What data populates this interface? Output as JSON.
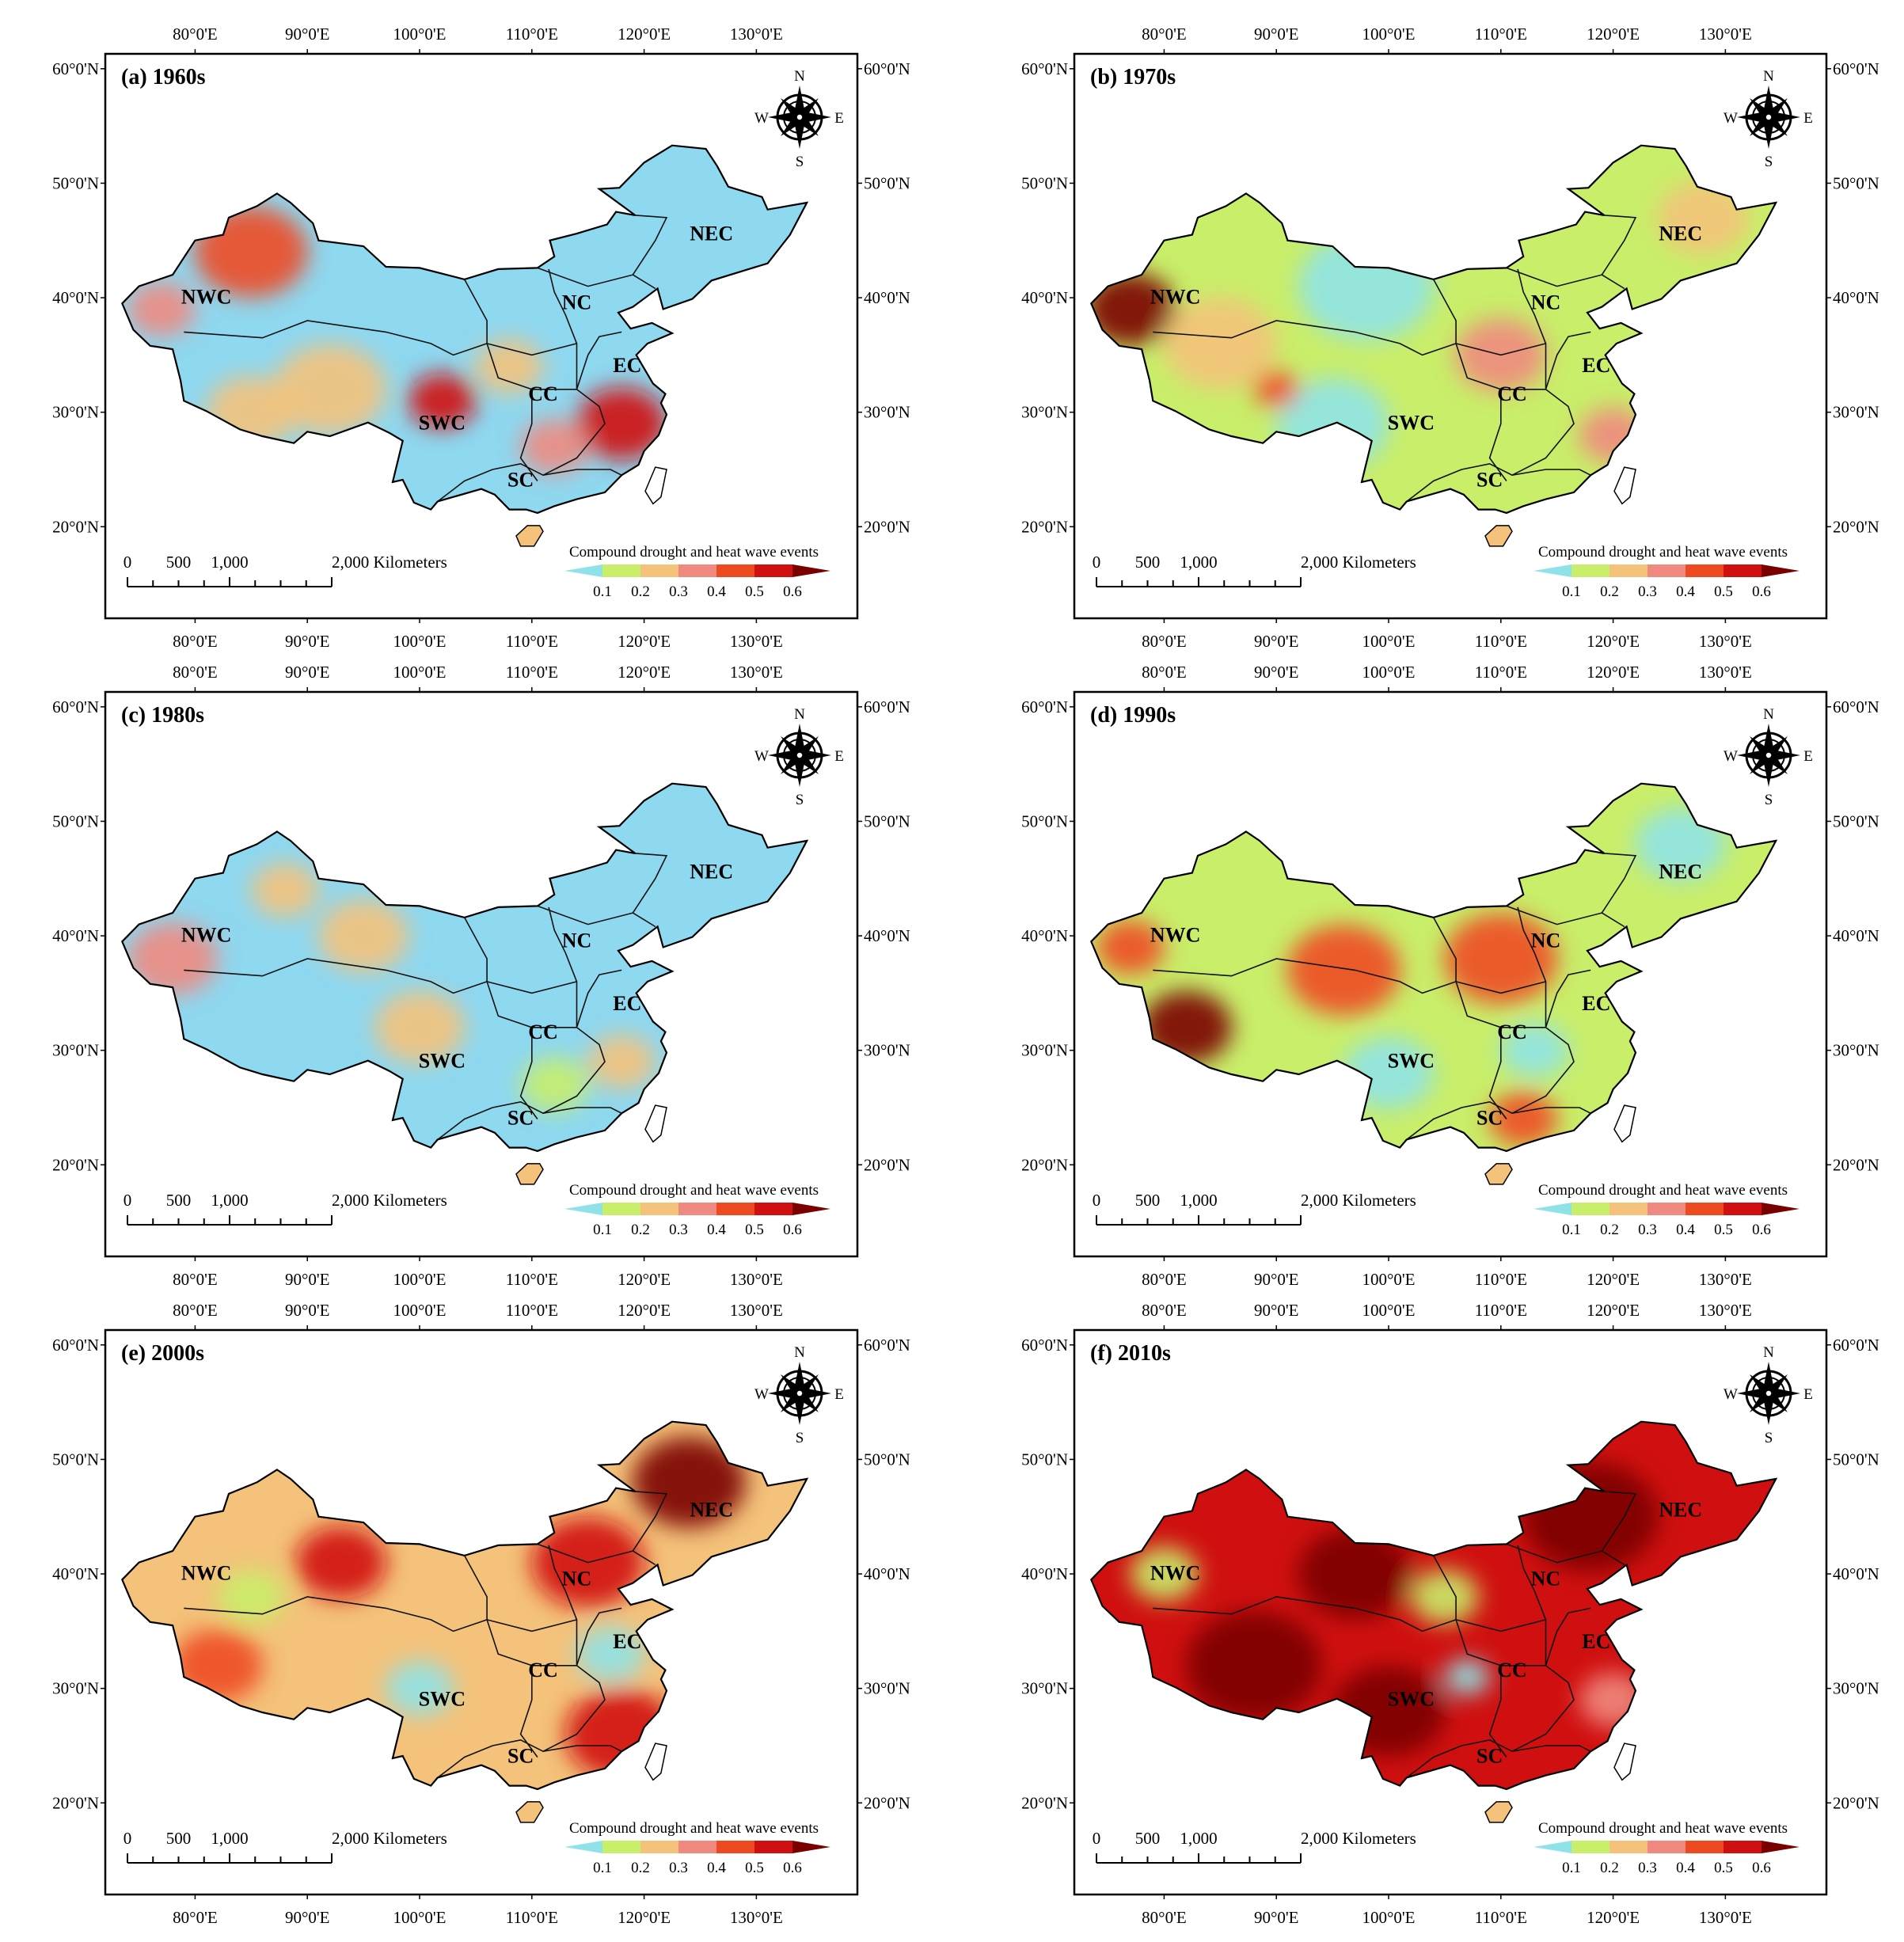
{
  "figure": {
    "description_title": "Compound drought and heat wave events by decade",
    "x_axis_ticks": [
      "80°0'E",
      "90°0'E",
      "100°0'E",
      "110°0'E",
      "120°0'E",
      "130°0'E"
    ],
    "y_axis_ticks": [
      "60°0'N",
      "50°0'N",
      "40°0'N",
      "30°0'N",
      "20°0'N"
    ],
    "north_arrow": {
      "n": "N",
      "s": "S",
      "w": "W",
      "e": "E"
    },
    "scale_bar": {
      "labels": [
        "0",
        "500",
        "1,000",
        "2,000 Kilometers"
      ]
    },
    "legend": {
      "title": "Compound drought and heat wave events",
      "ticks": [
        "0.1",
        "0.2",
        "0.3",
        "0.4",
        "0.5",
        "0.6"
      ],
      "colors": [
        "#8fe3e8",
        "#c9ee6a",
        "#f4c27a",
        "#f08a80",
        "#ee4a22",
        "#d01010",
        "#7a0000"
      ]
    },
    "regions": [
      "NWC",
      "NC",
      "NEC",
      "EC",
      "CC",
      "SWC",
      "SC"
    ]
  },
  "panels": [
    {
      "id": "a",
      "label": "(a) 1960s",
      "base": "#8ed8f0",
      "blobs": [
        {
          "lon": 85,
          "lat": 44,
          "r": 5,
          "level": 4
        },
        {
          "lon": 77,
          "lat": 39,
          "r": 3,
          "level": 3
        },
        {
          "lon": 102,
          "lat": 31,
          "r": 3,
          "level": 5
        },
        {
          "lon": 118,
          "lat": 29,
          "r": 4,
          "level": 5
        },
        {
          "lon": 92,
          "lat": 32,
          "r": 5,
          "level": 2
        },
        {
          "lon": 112,
          "lat": 27,
          "r": 3,
          "level": 3
        },
        {
          "lon": 108,
          "lat": 34,
          "r": 3,
          "level": 2
        },
        {
          "lon": 85,
          "lat": 30,
          "r": 4,
          "level": 2
        }
      ]
    },
    {
      "id": "b",
      "label": "(b) 1970s",
      "base": "#c9ee6a",
      "blobs": [
        {
          "lon": 77,
          "lat": 39,
          "r": 4,
          "level": 6
        },
        {
          "lon": 85,
          "lat": 36,
          "r": 5,
          "level": 2
        },
        {
          "lon": 98,
          "lat": 41,
          "r": 6,
          "level": 0
        },
        {
          "lon": 95,
          "lat": 29,
          "r": 5,
          "level": 0
        },
        {
          "lon": 110,
          "lat": 35,
          "r": 4,
          "level": 3
        },
        {
          "lon": 120,
          "lat": 28,
          "r": 3,
          "level": 3
        },
        {
          "lon": 128,
          "lat": 47,
          "r": 4,
          "level": 2
        },
        {
          "lon": 90,
          "lat": 32,
          "r": 2,
          "level": 4
        }
      ]
    },
    {
      "id": "c",
      "label": "(c) 1980s",
      "base": "#8ed8f0",
      "blobs": [
        {
          "lon": 78,
          "lat": 38,
          "r": 4,
          "level": 3
        },
        {
          "lon": 95,
          "lat": 40,
          "r": 4,
          "level": 2
        },
        {
          "lon": 100,
          "lat": 32,
          "r": 4,
          "level": 2
        },
        {
          "lon": 118,
          "lat": 29,
          "r": 3,
          "level": 2
        },
        {
          "lon": 88,
          "lat": 44,
          "r": 3,
          "level": 2
        },
        {
          "lon": 112,
          "lat": 27,
          "r": 3,
          "level": 1
        }
      ]
    },
    {
      "id": "d",
      "label": "(d) 1990s",
      "base": "#c9ee6a",
      "blobs": [
        {
          "lon": 82,
          "lat": 32,
          "r": 4,
          "level": 6
        },
        {
          "lon": 77,
          "lat": 39,
          "r": 3,
          "level": 4
        },
        {
          "lon": 96,
          "lat": 37,
          "r": 5,
          "level": 4
        },
        {
          "lon": 110,
          "lat": 38,
          "r": 5,
          "level": 4
        },
        {
          "lon": 100,
          "lat": 28,
          "r": 4,
          "level": 0
        },
        {
          "lon": 113,
          "lat": 30,
          "r": 3,
          "level": 0
        },
        {
          "lon": 112,
          "lat": 24,
          "r": 3,
          "level": 4
        },
        {
          "lon": 126,
          "lat": 48,
          "r": 4,
          "level": 0
        }
      ]
    },
    {
      "id": "e",
      "label": "(e) 2000s",
      "base": "#f4c27a",
      "blobs": [
        {
          "lon": 124,
          "lat": 48,
          "r": 5,
          "level": 6
        },
        {
          "lon": 115,
          "lat": 41,
          "r": 5,
          "level": 5
        },
        {
          "lon": 93,
          "lat": 41,
          "r": 4,
          "level": 5
        },
        {
          "lon": 118,
          "lat": 26,
          "r": 5,
          "level": 5
        },
        {
          "lon": 117,
          "lat": 33,
          "r": 3,
          "level": 0
        },
        {
          "lon": 85,
          "lat": 38,
          "r": 3,
          "level": 1
        },
        {
          "lon": 100,
          "lat": 30,
          "r": 3,
          "level": 0
        },
        {
          "lon": 82,
          "lat": 32,
          "r": 4,
          "level": 4
        }
      ]
    },
    {
      "id": "f",
      "label": "(f) 2010s",
      "base": "#d01010",
      "blobs": [
        {
          "lon": 88,
          "lat": 32,
          "r": 6,
          "level": 6
        },
        {
          "lon": 100,
          "lat": 28,
          "r": 5,
          "level": 6
        },
        {
          "lon": 118,
          "lat": 45,
          "r": 6,
          "level": 6
        },
        {
          "lon": 97,
          "lat": 40,
          "r": 5,
          "level": 6
        },
        {
          "lon": 80,
          "lat": 40,
          "r": 3,
          "level": 1
        },
        {
          "lon": 105,
          "lat": 38,
          "r": 3,
          "level": 1
        },
        {
          "lon": 107,
          "lat": 31,
          "r": 2,
          "level": 0
        },
        {
          "lon": 120,
          "lat": 29,
          "r": 3,
          "level": 3
        }
      ]
    }
  ]
}
